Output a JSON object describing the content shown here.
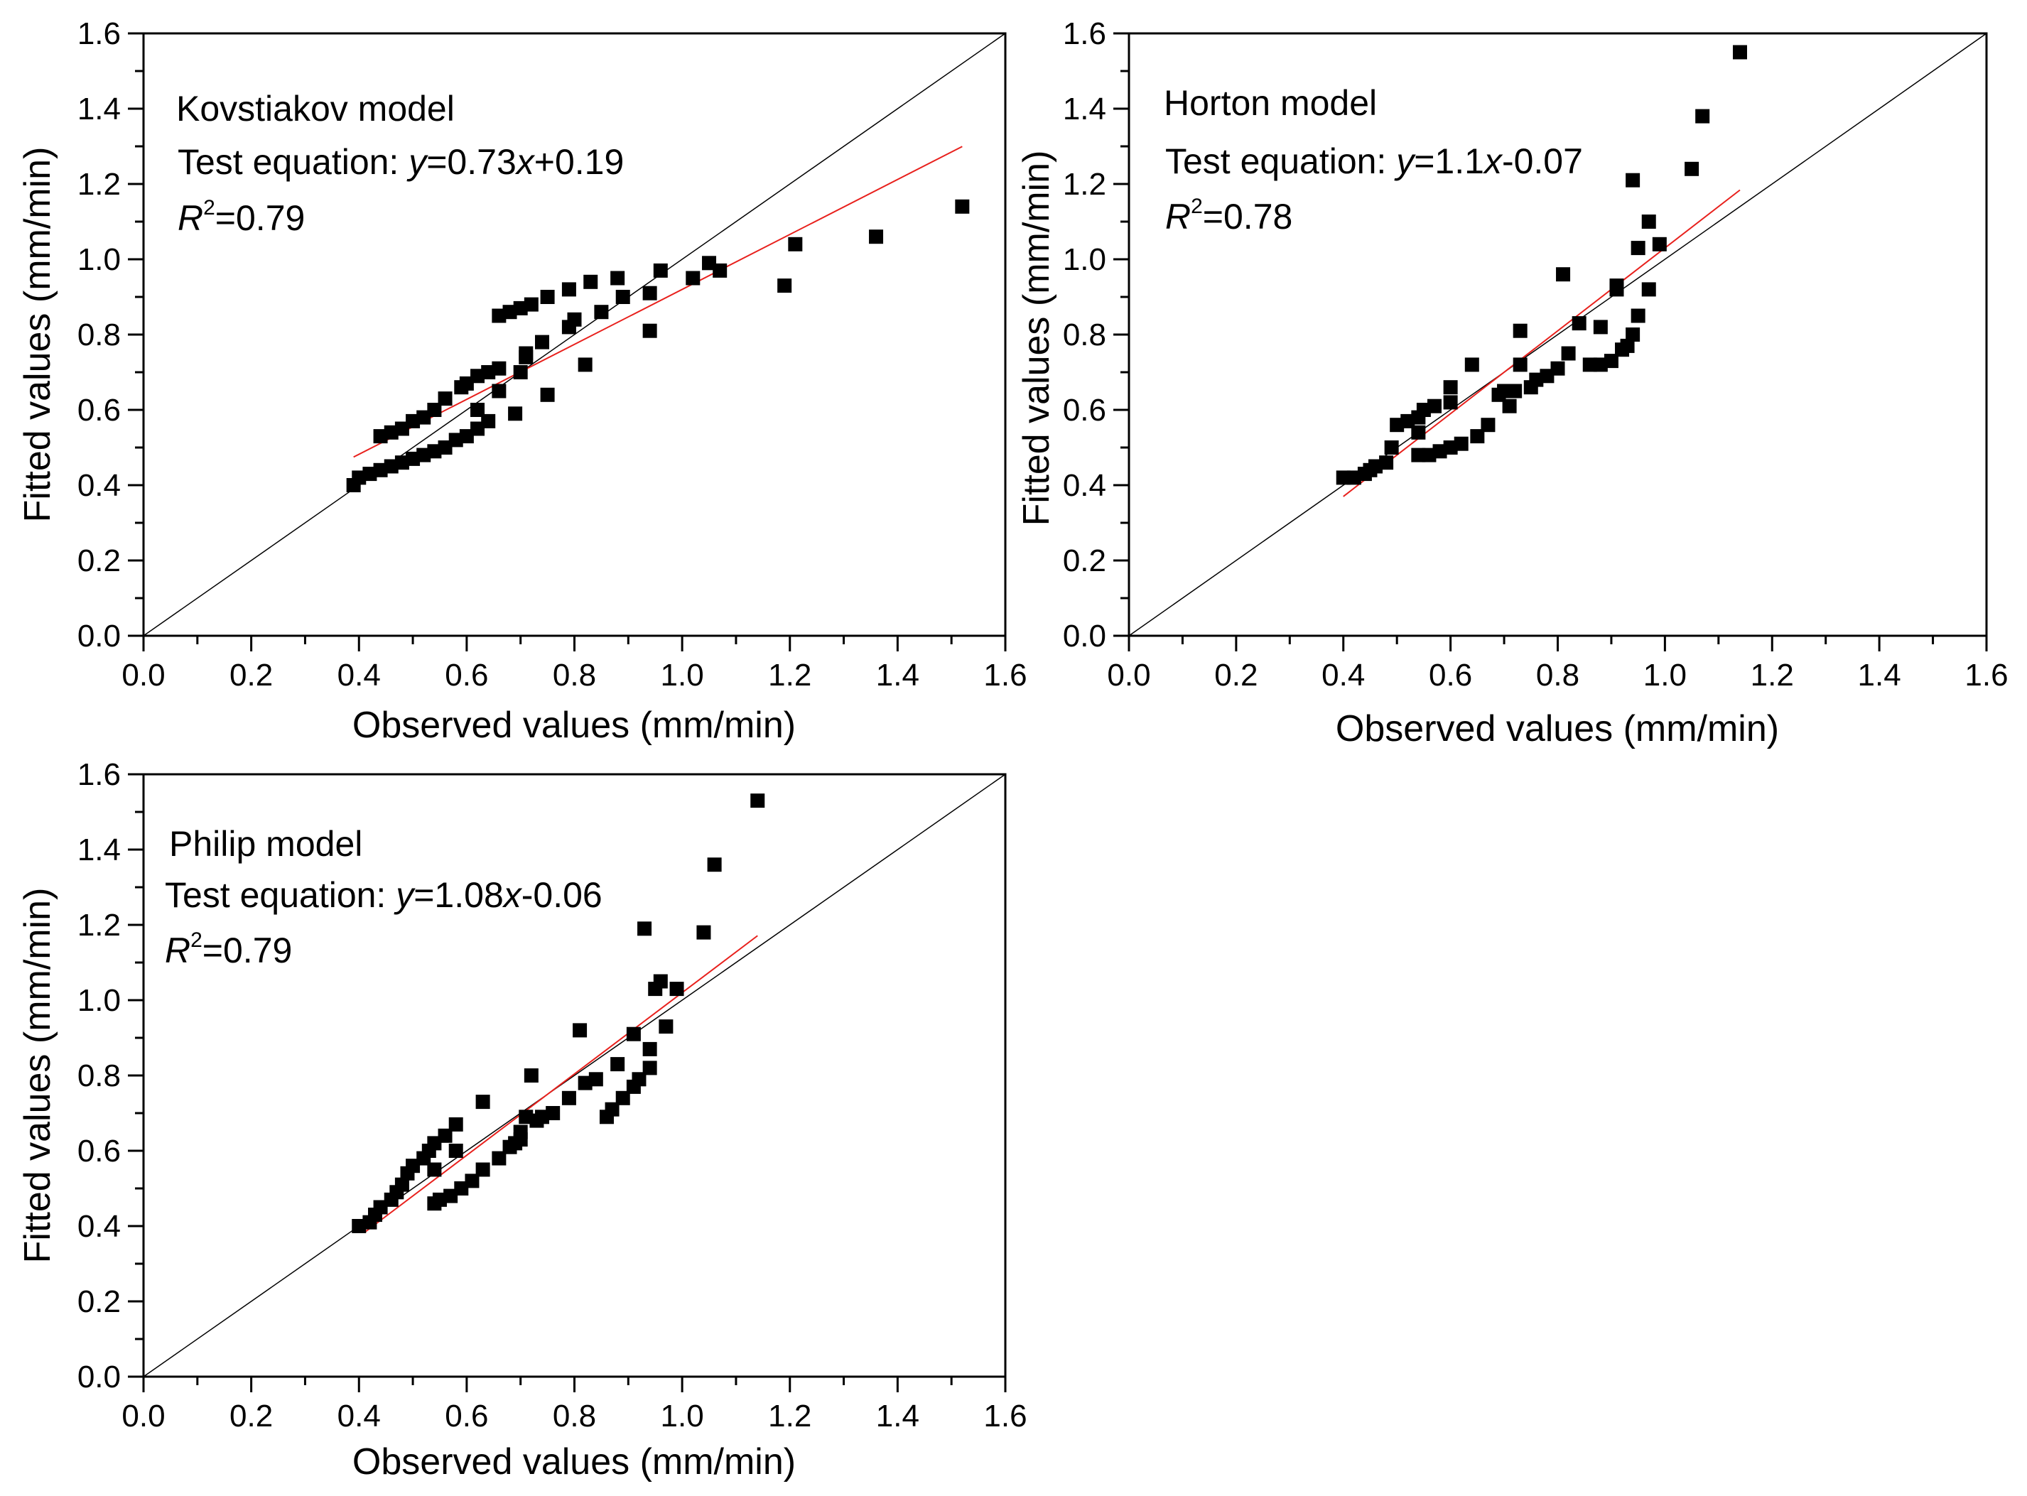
{
  "chart_data": [
    {
      "type": "scatter",
      "title": "Kovstiakov model",
      "xlabel": "Observed values (mm/min)",
      "ylabel": "Fitted values (mm/min)",
      "xlim": [
        0,
        1.6
      ],
      "ylim": [
        0,
        1.6
      ],
      "ticks": [
        "0.0",
        "0.2",
        "0.4",
        "0.6",
        "0.8",
        "1.0",
        "1.2",
        "1.4",
        "1.6"
      ],
      "annotation": {
        "model": "Kovstiakov model",
        "eq_prefix": "Test equation: ",
        "eq_y": "y",
        "eq_mid": "=0.73",
        "eq_x": "x",
        "eq_suffix": "+0.19",
        "r_letter": "R",
        "r_exp": "2",
        "r_value": "=0.79"
      },
      "fit": {
        "slope": 0.73,
        "intercept": 0.19,
        "x_range": [
          0.39,
          1.52
        ]
      },
      "points": [
        [
          0.39,
          0.4
        ],
        [
          0.4,
          0.42
        ],
        [
          0.42,
          0.43
        ],
        [
          0.44,
          0.44
        ],
        [
          0.46,
          0.45
        ],
        [
          0.48,
          0.46
        ],
        [
          0.5,
          0.47
        ],
        [
          0.52,
          0.48
        ],
        [
          0.54,
          0.49
        ],
        [
          0.56,
          0.5
        ],
        [
          0.58,
          0.52
        ],
        [
          0.6,
          0.53
        ],
        [
          0.62,
          0.55
        ],
        [
          0.64,
          0.57
        ],
        [
          0.69,
          0.59
        ],
        [
          0.62,
          0.6
        ],
        [
          0.66,
          0.65
        ],
        [
          0.7,
          0.7
        ],
        [
          0.71,
          0.74
        ],
        [
          0.71,
          0.75
        ],
        [
          0.75,
          0.64
        ],
        [
          0.82,
          0.72
        ],
        [
          0.74,
          0.78
        ],
        [
          0.79,
          0.82
        ],
        [
          0.8,
          0.84
        ],
        [
          0.85,
          0.86
        ],
        [
          0.89,
          0.9
        ],
        [
          0.94,
          0.81
        ],
        [
          0.94,
          0.91
        ],
        [
          0.96,
          0.97
        ],
        [
          1.02,
          0.95
        ],
        [
          1.05,
          0.99
        ],
        [
          1.07,
          0.97
        ],
        [
          1.19,
          0.93
        ],
        [
          1.21,
          1.04
        ],
        [
          1.36,
          1.06
        ],
        [
          1.52,
          1.14
        ],
        [
          0.44,
          0.53
        ],
        [
          0.46,
          0.54
        ],
        [
          0.48,
          0.55
        ],
        [
          0.5,
          0.57
        ],
        [
          0.52,
          0.58
        ],
        [
          0.54,
          0.6
        ],
        [
          0.56,
          0.63
        ],
        [
          0.59,
          0.66
        ],
        [
          0.6,
          0.67
        ],
        [
          0.62,
          0.69
        ],
        [
          0.64,
          0.7
        ],
        [
          0.66,
          0.71
        ],
        [
          0.66,
          0.85
        ],
        [
          0.68,
          0.86
        ],
        [
          0.7,
          0.87
        ],
        [
          0.72,
          0.88
        ],
        [
          0.75,
          0.9
        ],
        [
          0.79,
          0.92
        ],
        [
          0.83,
          0.94
        ],
        [
          0.88,
          0.95
        ]
      ]
    },
    {
      "type": "scatter",
      "title": "Horton model",
      "xlabel": "Observed values (mm/min)",
      "ylabel": "Fitted values (mm/min)",
      "xlim": [
        0,
        1.6
      ],
      "ylim": [
        0,
        1.6
      ],
      "ticks": [
        "0.0",
        "0.2",
        "0.4",
        "0.6",
        "0.8",
        "1.0",
        "1.2",
        "1.4",
        "1.6"
      ],
      "annotation": {
        "model": "Horton model",
        "eq_prefix": "Test equation: ",
        "eq_y": "y",
        "eq_mid": "=1.1",
        "eq_x": "x",
        "eq_suffix": "-0.07",
        "r_letter": "R",
        "r_exp": "2",
        "r_value": "=0.78"
      },
      "fit": {
        "slope": 1.1,
        "intercept": -0.07,
        "x_range": [
          0.4,
          1.14
        ]
      },
      "points": [
        [
          0.4,
          0.42
        ],
        [
          0.42,
          0.42
        ],
        [
          0.44,
          0.43
        ],
        [
          0.45,
          0.44
        ],
        [
          0.46,
          0.45
        ],
        [
          0.48,
          0.46
        ],
        [
          0.49,
          0.5
        ],
        [
          0.5,
          0.56
        ],
        [
          0.52,
          0.57
        ],
        [
          0.54,
          0.58
        ],
        [
          0.55,
          0.6
        ],
        [
          0.54,
          0.54
        ],
        [
          0.54,
          0.48
        ],
        [
          0.56,
          0.48
        ],
        [
          0.58,
          0.49
        ],
        [
          0.6,
          0.5
        ],
        [
          0.62,
          0.51
        ],
        [
          0.65,
          0.53
        ],
        [
          0.67,
          0.56
        ],
        [
          0.57,
          0.61
        ],
        [
          0.6,
          0.62
        ],
        [
          0.6,
          0.66
        ],
        [
          0.64,
          0.72
        ],
        [
          0.69,
          0.64
        ],
        [
          0.7,
          0.65
        ],
        [
          0.71,
          0.61
        ],
        [
          0.72,
          0.65
        ],
        [
          0.73,
          0.72
        ],
        [
          0.73,
          0.81
        ],
        [
          0.75,
          0.66
        ],
        [
          0.76,
          0.68
        ],
        [
          0.78,
          0.69
        ],
        [
          0.8,
          0.71
        ],
        [
          0.81,
          0.96
        ],
        [
          0.82,
          0.75
        ],
        [
          0.84,
          0.83
        ],
        [
          0.86,
          0.72
        ],
        [
          0.88,
          0.82
        ],
        [
          0.88,
          0.72
        ],
        [
          0.9,
          0.73
        ],
        [
          0.91,
          0.92
        ],
        [
          0.91,
          0.93
        ],
        [
          0.92,
          0.76
        ],
        [
          0.93,
          0.77
        ],
        [
          0.94,
          0.8
        ],
        [
          0.95,
          0.85
        ],
        [
          0.95,
          1.03
        ],
        [
          0.97,
          0.92
        ],
        [
          0.97,
          1.1
        ],
        [
          0.99,
          1.04
        ],
        [
          0.94,
          1.21
        ],
        [
          1.05,
          1.24
        ],
        [
          1.07,
          1.38
        ],
        [
          1.14,
          1.55
        ]
      ]
    },
    {
      "type": "scatter",
      "title": "Philip model",
      "xlabel": "Observed values (mm/min)",
      "ylabel": "Fitted values (mm/min)",
      "xlim": [
        0,
        1.6
      ],
      "ylim": [
        0,
        1.6
      ],
      "ticks": [
        "0.0",
        "0.2",
        "0.4",
        "0.6",
        "0.8",
        "1.0",
        "1.2",
        "1.4",
        "1.6"
      ],
      "annotation": {
        "model": "Philip model",
        "eq_prefix": "Test equation: ",
        "eq_y": "y",
        "eq_mid": "=1.08",
        "eq_x": "x",
        "eq_suffix": "-0.06",
        "r_letter": "R",
        "r_exp": "2",
        "r_value": "=0.79"
      },
      "fit": {
        "slope": 1.08,
        "intercept": -0.06,
        "x_range": [
          0.41,
          1.14
        ]
      },
      "points": [
        [
          0.4,
          0.4
        ],
        [
          0.42,
          0.41
        ],
        [
          0.43,
          0.43
        ],
        [
          0.44,
          0.45
        ],
        [
          0.46,
          0.47
        ],
        [
          0.47,
          0.49
        ],
        [
          0.48,
          0.51
        ],
        [
          0.49,
          0.54
        ],
        [
          0.5,
          0.56
        ],
        [
          0.52,
          0.58
        ],
        [
          0.53,
          0.6
        ],
        [
          0.54,
          0.62
        ],
        [
          0.56,
          0.64
        ],
        [
          0.58,
          0.67
        ],
        [
          0.58,
          0.6
        ],
        [
          0.63,
          0.73
        ],
        [
          0.54,
          0.55
        ],
        [
          0.54,
          0.46
        ],
        [
          0.55,
          0.47
        ],
        [
          0.57,
          0.48
        ],
        [
          0.59,
          0.5
        ],
        [
          0.61,
          0.52
        ],
        [
          0.63,
          0.55
        ],
        [
          0.66,
          0.58
        ],
        [
          0.68,
          0.61
        ],
        [
          0.69,
          0.62
        ],
        [
          0.7,
          0.63
        ],
        [
          0.7,
          0.65
        ],
        [
          0.71,
          0.69
        ],
        [
          0.72,
          0.8
        ],
        [
          0.73,
          0.68
        ],
        [
          0.74,
          0.69
        ],
        [
          0.76,
          0.7
        ],
        [
          0.79,
          0.74
        ],
        [
          0.81,
          0.92
        ],
        [
          0.82,
          0.78
        ],
        [
          0.84,
          0.79
        ],
        [
          0.86,
          0.69
        ],
        [
          0.87,
          0.71
        ],
        [
          0.88,
          0.83
        ],
        [
          0.89,
          0.74
        ],
        [
          0.91,
          0.91
        ],
        [
          0.91,
          0.77
        ],
        [
          0.92,
          0.79
        ],
        [
          0.94,
          0.82
        ],
        [
          0.94,
          0.87
        ],
        [
          0.95,
          1.03
        ],
        [
          0.96,
          1.05
        ],
        [
          0.97,
          0.93
        ],
        [
          0.99,
          1.03
        ],
        [
          0.93,
          1.19
        ],
        [
          1.04,
          1.18
        ],
        [
          1.06,
          1.36
        ],
        [
          1.14,
          1.53
        ]
      ]
    }
  ]
}
